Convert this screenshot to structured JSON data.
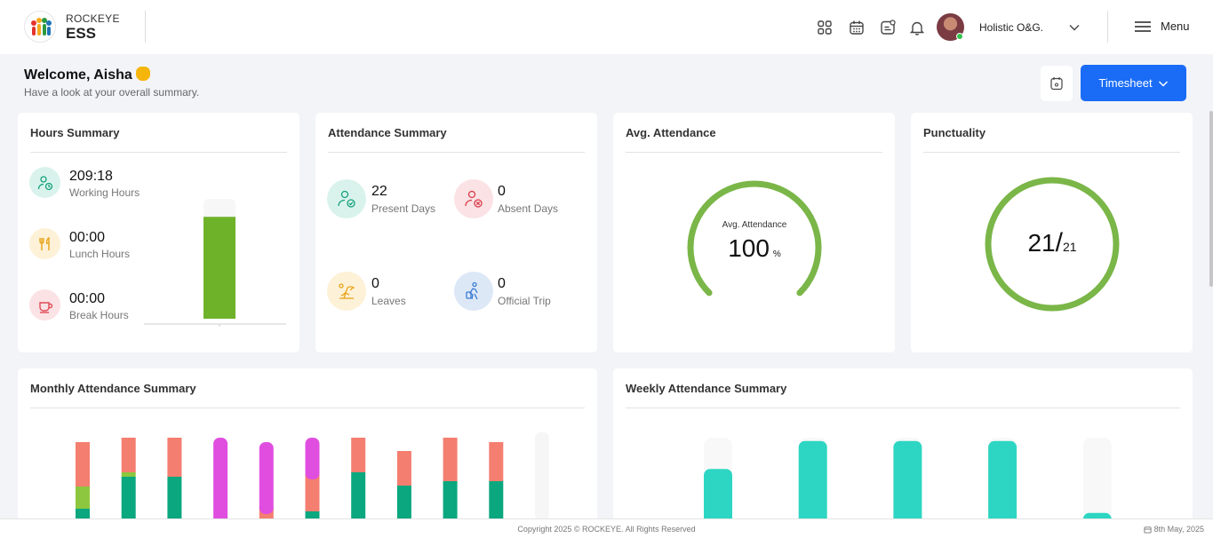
{
  "header": {
    "brand_small": "ROCKEYE",
    "brand_big": "ESS",
    "org_name": "Holistic O&G.",
    "menu_label": "Menu"
  },
  "welcome": {
    "title": "Welcome, Aisha",
    "subtitle": "Have a look at your overall summary."
  },
  "toolbar": {
    "timesheet_label": "Timesheet"
  },
  "hours_summary": {
    "title": "Hours Summary",
    "items": [
      {
        "value": "209:18",
        "label": "Working Hours"
      },
      {
        "value": "00:00",
        "label": "Lunch Hours"
      },
      {
        "value": "00:00",
        "label": "Break Hours"
      }
    ],
    "bar_fill_fraction": 0.85,
    "bar_color": "#6eb22a"
  },
  "attendance_summary": {
    "title": "Attendance Summary",
    "items": [
      {
        "value": "22",
        "label": "Present Days"
      },
      {
        "value": "0",
        "label": "Absent Days"
      },
      {
        "value": "0",
        "label": "Leaves"
      },
      {
        "value": "0",
        "label": "Official Trip"
      }
    ]
  },
  "avg_attendance": {
    "title": "Avg. Attendance",
    "gauge_label": "Avg. Attendance",
    "value": "100",
    "unit": "%",
    "fraction": 1.0,
    "color": "#7ab648"
  },
  "punctuality": {
    "title": "Punctuality",
    "numerator": "21",
    "denominator": "21",
    "color": "#7ab648"
  },
  "monthly": {
    "title": "Monthly Attendance Summary",
    "colors": {
      "green": "#0ba77f",
      "lime": "#8dc73f",
      "salmon": "#f47e70",
      "magenta": "#e04ee0",
      "empty": "#f6f6f6"
    },
    "bars": [
      {
        "segments": [
          {
            "c": "green",
            "v": 12
          },
          {
            "c": "lime",
            "v": 25
          },
          {
            "c": "salmon",
            "v": 50
          }
        ]
      },
      {
        "segments": [
          {
            "c": "green",
            "v": 48
          },
          {
            "c": "lime",
            "v": 5
          },
          {
            "c": "salmon",
            "v": 39
          }
        ]
      },
      {
        "segments": [
          {
            "c": "green",
            "v": 48
          },
          {
            "c": "salmon",
            "v": 44
          }
        ]
      },
      {
        "segments": [
          {
            "c": "magenta",
            "v": 92
          }
        ]
      },
      {
        "segments": [
          {
            "c": "salmon",
            "v": 14
          },
          {
            "c": "magenta",
            "v": 73
          }
        ]
      },
      {
        "segments": [
          {
            "c": "green",
            "v": 9
          },
          {
            "c": "salmon",
            "v": 44
          },
          {
            "c": "magenta",
            "v": 39
          }
        ]
      },
      {
        "segments": [
          {
            "c": "green",
            "v": 53
          },
          {
            "c": "salmon",
            "v": 39
          }
        ]
      },
      {
        "segments": [
          {
            "c": "green",
            "v": 38
          },
          {
            "c": "salmon",
            "v": 39
          }
        ]
      },
      {
        "segments": [
          {
            "c": "green",
            "v": 43
          },
          {
            "c": "salmon",
            "v": 49
          }
        ]
      },
      {
        "segments": [
          {
            "c": "green",
            "v": 43
          },
          {
            "c": "salmon",
            "v": 44
          }
        ]
      },
      {
        "segments": []
      }
    ]
  },
  "weekly": {
    "title": "Weekly Attendance Summary",
    "color": "#2dd6c2",
    "values": [
      0.63,
      0.98,
      0.98,
      0.98,
      0.08
    ]
  },
  "footer": {
    "copyright": "Copyright 2025 © ROCKEYE. All Rights Reserved",
    "date": "8th May, 2025"
  }
}
